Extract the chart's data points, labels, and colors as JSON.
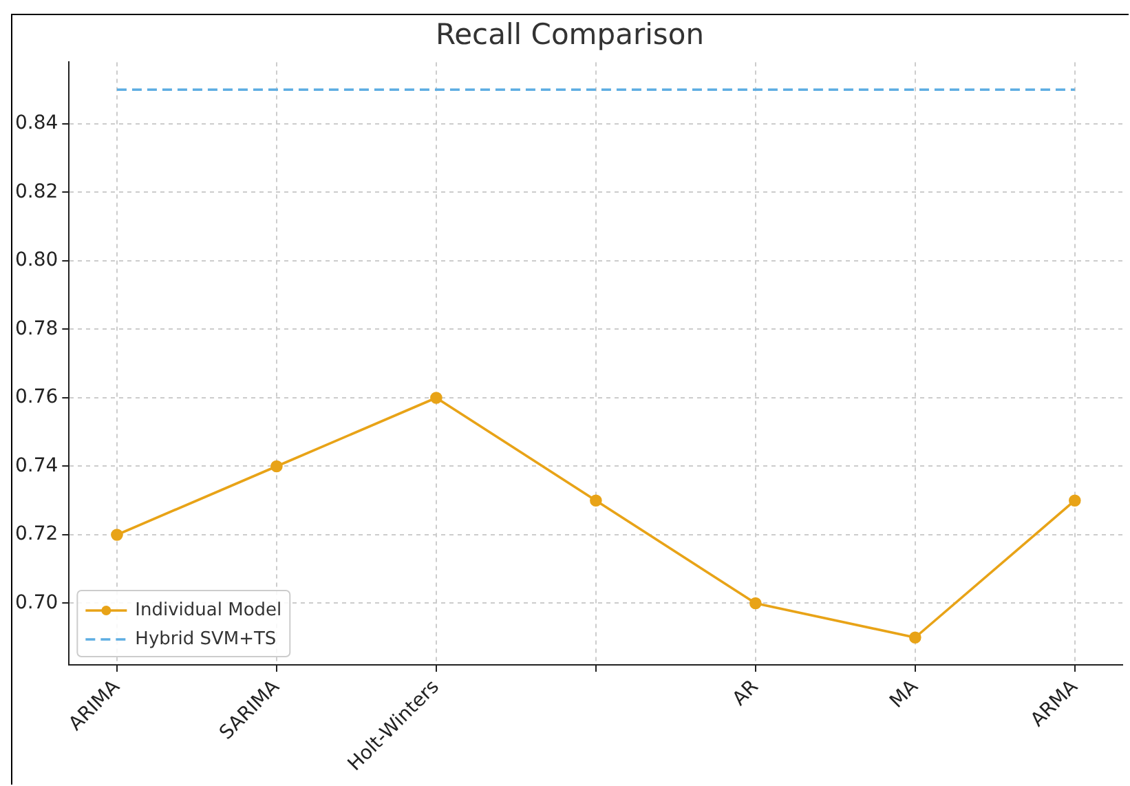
{
  "chart_data": {
    "type": "line",
    "title": "Recall Comparison",
    "categories": [
      "ARIMA",
      "SARIMA",
      "Holt-Winters",
      null,
      "AR",
      "MA",
      "ARMA"
    ],
    "series": [
      {
        "name": "Individual Model",
        "color": "#e8a317",
        "values": [
          0.72,
          0.74,
          0.76,
          0.73,
          0.7,
          0.69,
          0.73
        ],
        "marker": "circle",
        "line_style": "solid"
      },
      {
        "name": "Hybrid SVM+TS",
        "color": "#5dade2",
        "values": [
          0.85,
          0.85,
          0.85,
          0.85,
          0.85,
          0.85,
          0.85
        ],
        "marker": "none",
        "line_style": "dashed"
      }
    ],
    "ylim": [
      0.682,
      0.858
    ],
    "yticks": [
      {
        "value": 0.7,
        "label": "0.70"
      },
      {
        "value": 0.72,
        "label": "0.72"
      },
      {
        "value": 0.74,
        "label": "0.74"
      },
      {
        "value": 0.76,
        "label": "0.76"
      },
      {
        "value": 0.78,
        "label": "0.78"
      },
      {
        "value": 0.8,
        "label": "0.80"
      },
      {
        "value": 0.82,
        "label": "0.82"
      },
      {
        "value": 0.84,
        "label": "0.84"
      }
    ],
    "grid": true,
    "legend": "bottom left"
  }
}
